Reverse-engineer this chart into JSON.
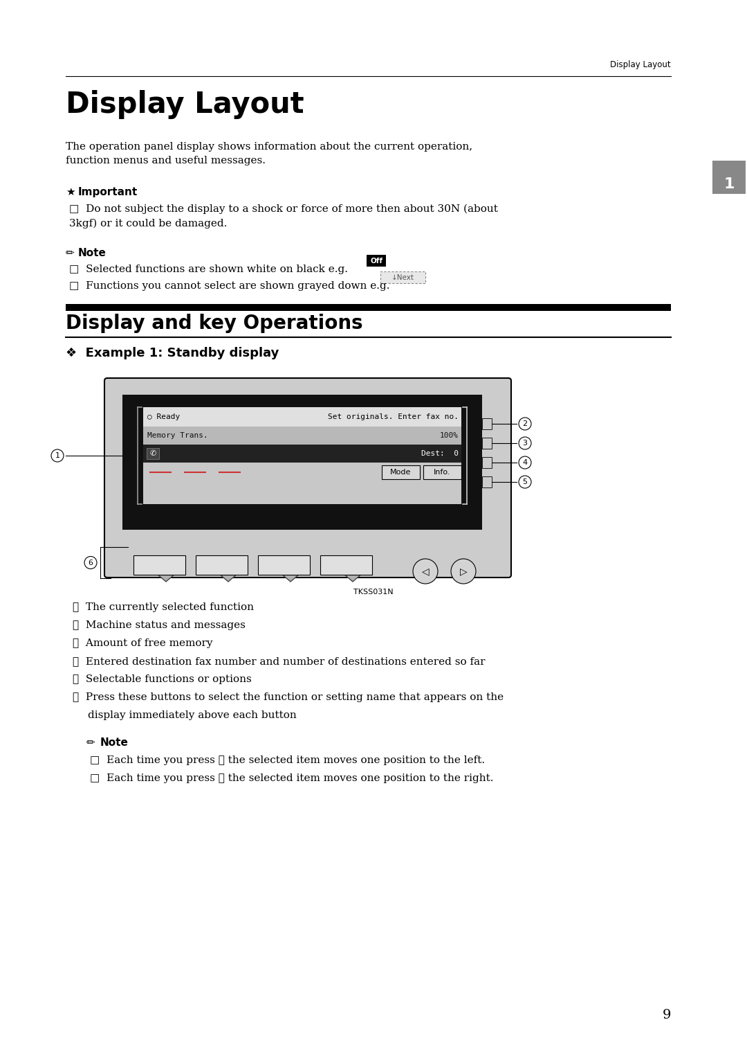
{
  "page_bg": "#ffffff",
  "header_text": "Display Layout",
  "tab_color": "#888888",
  "tab_text": "1",
  "main_title": "Display Layout",
  "intro_text": "The operation panel display shows information about the current operation,\nfunction menus and useful messages.",
  "important_label": "★Important",
  "important_item": "Do not subject the display to a shock or force of more then about 30N (about\n3kgf) or it could be damaged.",
  "note_label": "Note",
  "note_item1": "Selected functions are shown white on black e.g.",
  "note_item2": "Functions you cannot select are shown grayed down e.g.",
  "section2_title": "Display and key Operations",
  "example_title": "❖  Example 1: Standby display",
  "diagram_caption": "TKSS031N",
  "item1": "①  The currently selected function",
  "item2": "②  Machine status and messages",
  "item3": "③  Amount of free memory",
  "item4": "④  Entered destination fax number and number of destinations entered so far",
  "item5": "⑤  Selectable functions or options",
  "item6a": "⑥  Press these buttons to select the function or setting name that appears on the",
  "item6b": "    display immediately above each button",
  "note2_label": "Note",
  "note2_item1": "Each time you press ① the selected item moves one position to the left.",
  "note2_item2": "Each time you press ② the selected item moves one position to the right.",
  "page_number": "9"
}
